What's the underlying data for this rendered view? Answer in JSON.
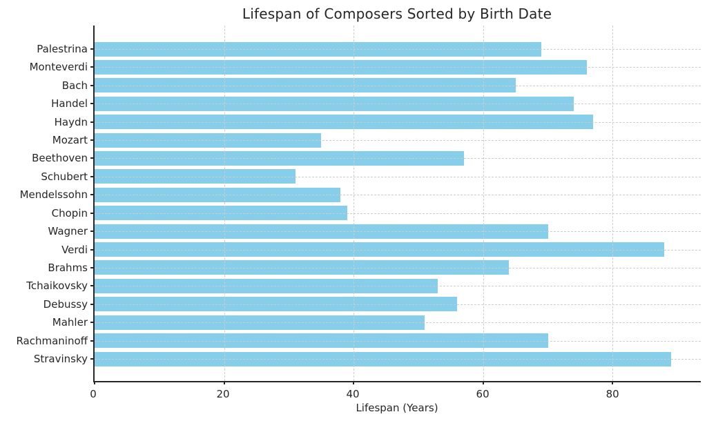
{
  "chart_data": {
    "type": "bar",
    "orientation": "horizontal",
    "title": "Lifespan of Composers Sorted by Birth Date",
    "xlabel": "Lifespan (Years)",
    "ylabel": "",
    "categories": [
      "Palestrina",
      "Monteverdi",
      "Bach",
      "Handel",
      "Haydn",
      "Mozart",
      "Beethoven",
      "Schubert",
      "Mendelssohn",
      "Chopin",
      "Wagner",
      "Verdi",
      "Brahms",
      "Tchaikovsky",
      "Debussy",
      "Mahler",
      "Rachmaninoff",
      "Stravinsky"
    ],
    "values": [
      69,
      76,
      65,
      74,
      77,
      35,
      57,
      31,
      38,
      39,
      70,
      88,
      64,
      53,
      56,
      51,
      70,
      89
    ],
    "xticks": [
      0,
      20,
      40,
      60,
      80
    ],
    "xlim": [
      0,
      93.6
    ],
    "grid": true,
    "legend": "none",
    "bar_color": "#87CEEB",
    "grid_color": "#cccccc",
    "axis_color": "#262626",
    "text_color": "#262626",
    "background": "#ffffff"
  }
}
